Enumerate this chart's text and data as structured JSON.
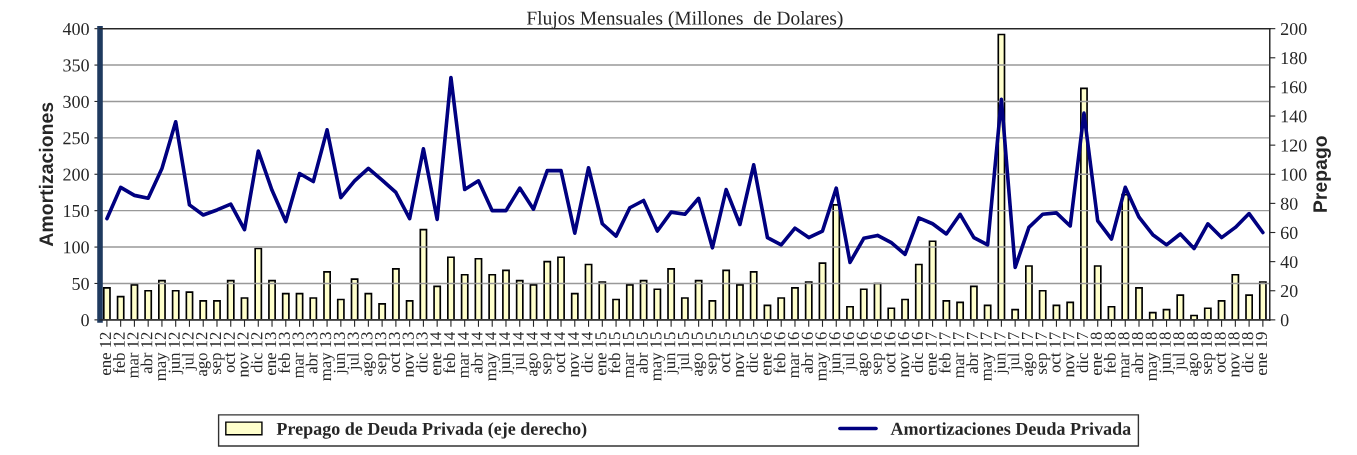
{
  "chart_data": {
    "type": "bar",
    "title": "Flujos Mensuales (Millones  de Dolares)",
    "ylabel": "Amortizaciones",
    "y2label": "Prepago",
    "categories": [
      "ene 12",
      "feb 12",
      "mar 12",
      "abr 12",
      "may 12",
      "jun 12",
      "jul 12",
      "ago 12",
      "sep 12",
      "oct 12",
      "nov 12",
      "dic 12",
      "ene 13",
      "feb 13",
      "mar 13",
      "abr 13",
      "may 13",
      "jun 13",
      "jul 13",
      "ago 13",
      "sep 13",
      "oct 13",
      "nov 13",
      "dic 13",
      "ene 14",
      "feb 14",
      "mar 14",
      "abr 14",
      "may 14",
      "jun 14",
      "jul 14",
      "ago 14",
      "sep 14",
      "oct 14",
      "nov 14",
      "dic 14",
      "ene 15",
      "feb 15",
      "mar 15",
      "abr 15",
      "may 15",
      "jun 15",
      "jul 15",
      "ago 15",
      "sep 15",
      "oct 15",
      "nov 15",
      "dic 15",
      "ene 16",
      "feb 16",
      "mar 16",
      "abr 16",
      "may 16",
      "jun 16",
      "jul 16",
      "ago 16",
      "sep 16",
      "oct 16",
      "nov 16",
      "dic 16",
      "ene 17",
      "feb 17",
      "mar 17",
      "abr 17",
      "may 17",
      "jun 17",
      "jul 17",
      "ago 17",
      "sep 17",
      "oct 17",
      "nov 17",
      "dic 17",
      "ene 18",
      "feb 18",
      "mar 18",
      "abr 18",
      "may 18",
      "jun 18",
      "jul 18",
      "ago 18",
      "sep 18",
      "oct 18",
      "nov 18",
      "dic 18",
      "ene 19"
    ],
    "series": [
      {
        "name": "Prepago de Deuda Privada (eje derecho)",
        "axis": "y2",
        "color": "#ffffcc",
        "values": [
          22,
          16,
          24,
          20,
          27,
          20,
          19,
          13,
          13,
          27,
          15,
          49,
          27,
          18,
          18,
          15,
          33,
          14,
          28,
          18,
          11,
          35,
          13,
          62,
          23,
          43,
          31,
          42,
          31,
          34,
          27,
          24,
          40,
          43,
          18,
          38,
          26,
          14,
          24,
          27,
          21,
          35,
          15,
          27,
          13,
          34,
          24,
          33,
          10,
          15,
          22,
          26,
          39,
          79,
          9,
          21,
          25,
          8,
          14,
          38,
          54,
          13,
          12,
          23,
          10,
          196,
          7,
          37,
          20,
          10,
          12,
          159,
          37,
          9,
          86,
          22,
          5,
          7,
          17,
          3,
          8,
          13,
          31,
          17,
          26
        ]
      },
      {
        "name": "Amortizaciones Deuda Privada",
        "type": "line",
        "axis": "y",
        "color": "#000080",
        "values": [
          139,
          182,
          171,
          167,
          208,
          272,
          158,
          144,
          151,
          159,
          124,
          232,
          178,
          135,
          201,
          190,
          261,
          168,
          191,
          208,
          192,
          175,
          139,
          235,
          138,
          333,
          179,
          191,
          150,
          150,
          181,
          152,
          205,
          205,
          119,
          209,
          132,
          115,
          154,
          164,
          122,
          148,
          145,
          167,
          99,
          179,
          131,
          213,
          113,
          103,
          126,
          113,
          122,
          181,
          79,
          112,
          116,
          106,
          90,
          140,
          132,
          118,
          145,
          113,
          103,
          303,
          72,
          127,
          145,
          147,
          129,
          284,
          136,
          111,
          182,
          141,
          117,
          103,
          118,
          98,
          132,
          113,
          127,
          146,
          120
        ]
      }
    ],
    "ylim": [
      0,
      400
    ],
    "yticks": [
      0,
      50,
      100,
      150,
      200,
      250,
      300,
      350,
      400
    ],
    "y2lim": [
      0,
      200
    ],
    "y2ticks": [
      0,
      20,
      40,
      60,
      80,
      100,
      120,
      140,
      160,
      180,
      200
    ],
    "grid": "y",
    "legend": "bottom"
  }
}
